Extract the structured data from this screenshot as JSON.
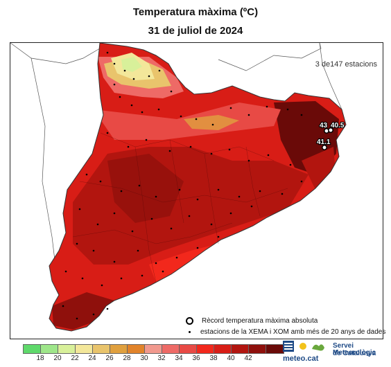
{
  "title": "Temperatura màxima (ºC)",
  "subtitle": "31 de juliol de 2024",
  "station_count": "3 de147 estacions",
  "records": [
    {
      "label": "43",
      "value": 43
    },
    {
      "label": "40.5",
      "value": 40.5
    },
    {
      "label": "41.1",
      "value": 41.1
    }
  ],
  "legend": {
    "record": "Rècord temperatura màxima absoluta",
    "stations": "estacions de la XEMA i XOM amb més de 20 anys de dades"
  },
  "scale": {
    "colors": [
      "#5fd96b",
      "#9ee68a",
      "#d8f09a",
      "#f3e79a",
      "#e9c46c",
      "#e0a03e",
      "#e1832a",
      "#f1998e",
      "#ee6a66",
      "#e84a45",
      "#f2281c",
      "#d81d16",
      "#b2150f",
      "#8f100c",
      "#6a0a08"
    ],
    "ticks": [
      "18",
      "20",
      "22",
      "24",
      "26",
      "28",
      "30",
      "32",
      "34",
      "36",
      "38",
      "40",
      "42"
    ]
  },
  "logo": {
    "name_line1": "Servei Meteorològic",
    "name_line2": "de Catalunya",
    "brand": "meteo.cat"
  }
}
